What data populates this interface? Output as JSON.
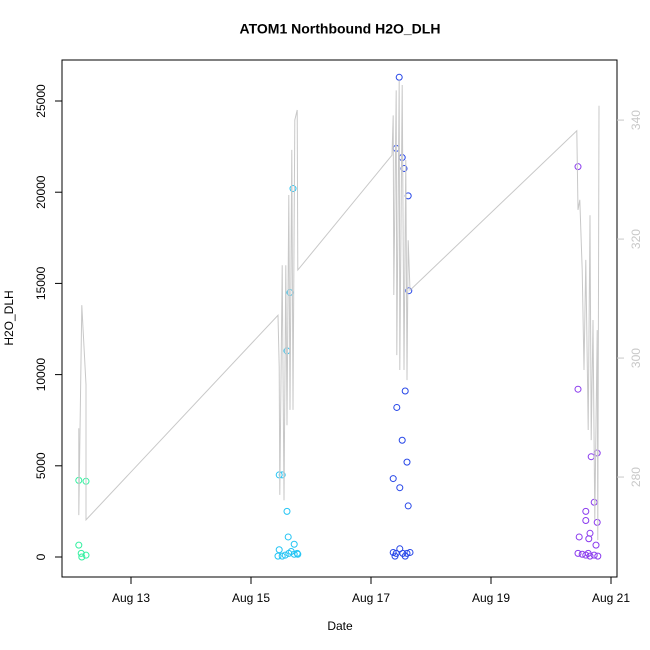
{
  "chart_data": {
    "type": "scatter",
    "title": "ATOM1 Northbound H2O_DLH",
    "xlabel": "Date",
    "ylabel": "H2O_DLH",
    "xlim": [
      11.85,
      21.1
    ],
    "xticks": [
      {
        "value": 13,
        "label": "Aug 13"
      },
      {
        "value": 15,
        "label": "Aug 15"
      },
      {
        "value": 17,
        "label": "Aug 17"
      },
      {
        "value": 19,
        "label": "Aug 19"
      },
      {
        "value": 21,
        "label": "Aug 21"
      }
    ],
    "ylim": [
      -1096,
      27248
    ],
    "yticks": [
      0,
      5000,
      10000,
      15000,
      20000,
      25000
    ],
    "y2lim": [
      263.2,
      350.1
    ],
    "y2ticks": [
      280,
      300,
      320,
      340
    ],
    "y2color": "#c8c8c8",
    "series": [
      {
        "color": "#33f0a0",
        "x": [
          12.13,
          12.13,
          12.17,
          12.18,
          12.25,
          12.25
        ],
        "values": [
          4200,
          650,
          200,
          0,
          4150,
          100
        ]
      },
      {
        "color": "#22c4f4",
        "x": [
          15.47,
          15.52,
          15.6,
          15.65,
          15.7,
          15.6,
          15.62,
          15.72,
          15.47,
          15.45,
          15.52,
          15.57,
          15.63,
          15.67,
          15.72,
          15.77,
          15.78
        ],
        "values": [
          4500,
          4500,
          11300,
          14500,
          20200,
          2500,
          1100,
          700,
          400,
          50,
          50,
          100,
          200,
          300,
          150,
          200,
          150
        ]
      },
      {
        "color": "#2646e8",
        "x": [
          17.47,
          17.42,
          17.52,
          17.55,
          17.62,
          17.63,
          17.57,
          17.43,
          17.52,
          17.6,
          17.37,
          17.48,
          17.62,
          17.48,
          17.37,
          17.42,
          17.53,
          17.6,
          17.57,
          17.65,
          17.4
        ],
        "values": [
          26300,
          22400,
          21900,
          21300,
          19800,
          14600,
          9100,
          8200,
          6400,
          5200,
          4300,
          3800,
          2800,
          450,
          250,
          200,
          200,
          200,
          50,
          250,
          50
        ]
      },
      {
        "color": "#8a3aee",
        "x": [
          20.45,
          20.45,
          20.47,
          20.58,
          20.58,
          20.65,
          20.63,
          20.67,
          20.77,
          20.72,
          20.77,
          20.75,
          20.45,
          20.52,
          20.58,
          20.65,
          20.72,
          20.78,
          20.62
        ],
        "values": [
          21400,
          9200,
          1100,
          2500,
          2000,
          1300,
          1000,
          5500,
          5700,
          3000,
          1900,
          650,
          200,
          150,
          100,
          50,
          100,
          50,
          200
        ]
      },
      {
        "type": "line",
        "axis": "y2",
        "color": "#c8c8c8",
        "x": [
          12.13,
          12.13,
          12.18,
          12.25,
          12.25,
          15.45,
          15.47,
          15.48,
          15.52,
          15.55,
          15.58,
          15.6,
          15.63,
          15.65,
          15.68,
          15.7,
          15.73,
          15.77,
          15.78,
          17.35,
          17.37,
          17.38,
          17.42,
          17.43,
          17.47,
          17.48,
          17.52,
          17.55,
          17.58,
          17.6,
          17.62,
          17.65,
          20.43,
          20.45,
          20.48,
          20.52,
          20.55,
          20.58,
          20.62,
          20.65,
          20.67,
          20.7,
          20.73,
          20.77,
          20.78,
          20.8
        ],
        "values": [
          288.2,
          273.6,
          308.9,
          295.5,
          272.8,
          307.2,
          298.5,
          277.0,
          315.6,
          276.1,
          315.6,
          288.7,
          327.4,
          291.3,
          335.0,
          291.3,
          340.0,
          341.7,
          314.8,
          334.1,
          340.8,
          310.6,
          345.0,
          300.5,
          346.7,
          298.0,
          345.9,
          298.0,
          333.3,
          296.3,
          319.8,
          311.4,
          338.2,
          324.9,
          326.6,
          314.8,
          298.0,
          316.5,
          287.9,
          324.0,
          286.2,
          306.4,
          272.8,
          304.7,
          269.4,
          342.4
        ]
      }
    ]
  }
}
